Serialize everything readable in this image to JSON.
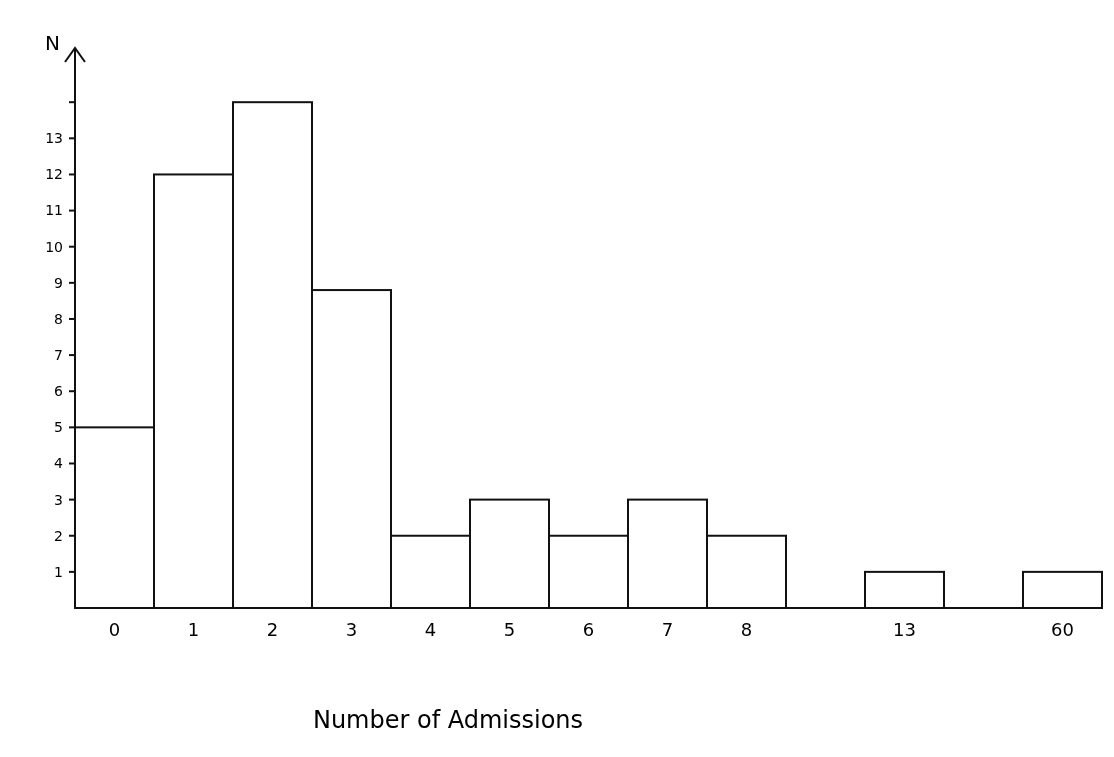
{
  "chart_data": {
    "type": "bar",
    "xlabel": "Number of Admissions",
    "ylabel": "N",
    "categories": [
      "0",
      "1",
      "2",
      "3",
      "4",
      "5",
      "6",
      "7",
      "8",
      null,
      "13",
      null,
      "60"
    ],
    "values": [
      5,
      12,
      14,
      8.8,
      2,
      3,
      2,
      3,
      2,
      null,
      1,
      null,
      1
    ],
    "color": "#ffffff",
    "ylim": [
      0,
      15.5
    ],
    "yticks": [
      1,
      2,
      3,
      4,
      5,
      6,
      7,
      8,
      9,
      10,
      11,
      12,
      13,
      {
        "value": 14,
        "label": null
      }
    ],
    "grid": false
  }
}
